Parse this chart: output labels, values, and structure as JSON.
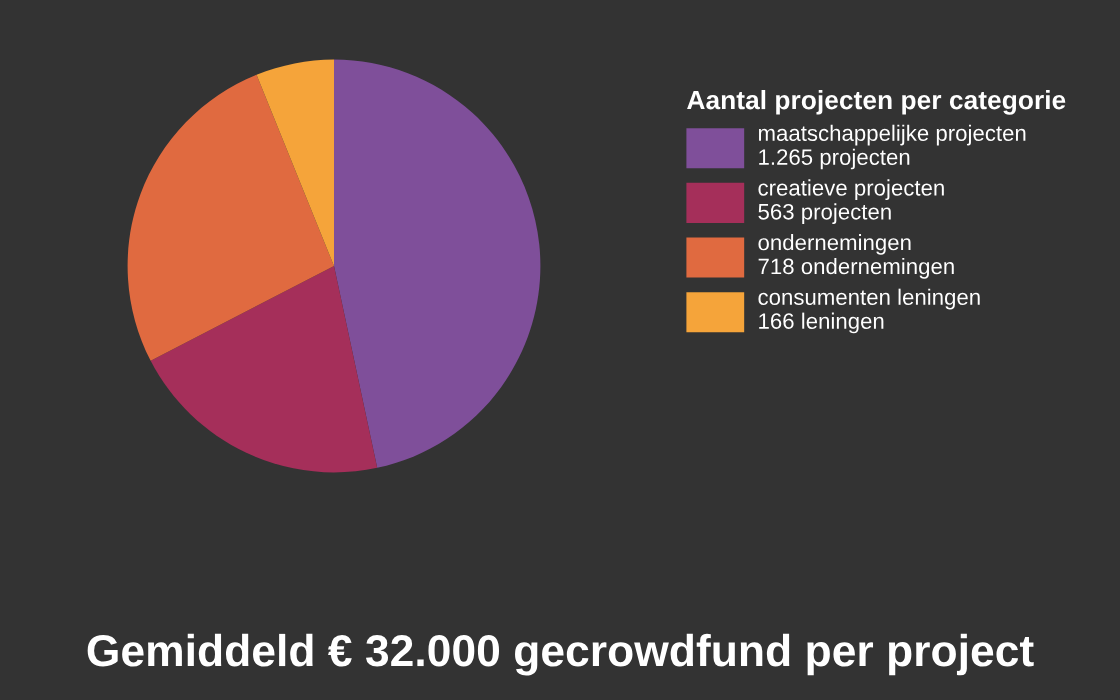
{
  "chart_data": {
    "type": "pie",
    "legend_title": "Aantal projecten per categorie",
    "categories": [
      "maatschappelijke projecten",
      "creatieve projecten",
      "ondernemingen",
      "consumenten leningen"
    ],
    "values": [
      1265,
      563,
      718,
      166
    ],
    "value_labels": [
      "1.265 projecten",
      "563 projecten",
      "718 ondernemingen",
      "166 leningen"
    ],
    "colors": [
      "#7f4f9a",
      "#a52f5a",
      "#e06a40",
      "#f5a43a"
    ],
    "legend": "right",
    "annotations": [
      "Gemiddeld € 32.000 gecrowdfund per project"
    ]
  }
}
